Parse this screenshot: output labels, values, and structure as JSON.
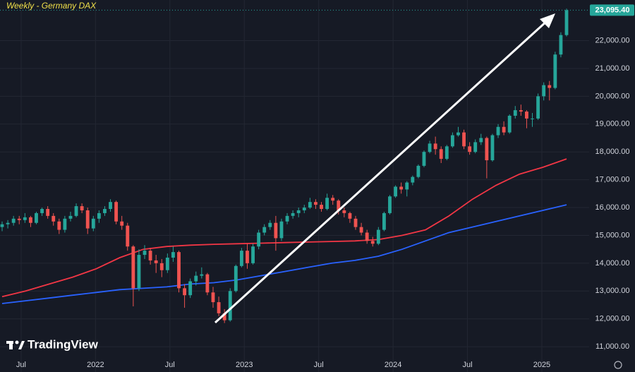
{
  "chart_data": {
    "type": "candlestick",
    "title": "Weekly - Germany DAX",
    "brand": "TradingView",
    "up_color": "#26a69a",
    "down_color": "#ef5350",
    "grid": true,
    "ylim": [
      10090,
      23460
    ],
    "yticks": [
      {
        "value": 11000,
        "label": "11,000.00"
      },
      {
        "value": 12000,
        "label": "12,000.00"
      },
      {
        "value": 13000,
        "label": "13,000.00"
      },
      {
        "value": 14000,
        "label": "14,000.00"
      },
      {
        "value": 15000,
        "label": "15,000.00"
      },
      {
        "value": 16000,
        "label": "16,000.00"
      },
      {
        "value": 17000,
        "label": "17,000.00"
      },
      {
        "value": 18000,
        "label": "18,000.00"
      },
      {
        "value": 19000,
        "label": "19,000.00"
      },
      {
        "value": 20000,
        "label": "20,000.00"
      },
      {
        "value": 21000,
        "label": "21,000.00"
      },
      {
        "value": 22000,
        "label": "22,000.00"
      }
    ],
    "xlim": [
      2021.358,
      2025.318
    ],
    "xticks": [
      {
        "value": 2021.5,
        "label": "Jul"
      },
      2022,
      {
        "value": 2022.5,
        "label": "Jul"
      },
      2023,
      {
        "value": 2023.5,
        "label": "Jul"
      },
      2024,
      {
        "value": 2024.5,
        "label": "Jul"
      },
      2025
    ],
    "last_price": {
      "value": 23095.4,
      "label": "23,095.40"
    },
    "ohlc": [
      [
        15300,
        15500,
        15150,
        15400
      ],
      [
        15400,
        15550,
        15250,
        15450
      ],
      [
        15450,
        15700,
        15350,
        15600
      ],
      [
        15600,
        15700,
        15400,
        15550
      ],
      [
        15550,
        15800,
        15450,
        15650
      ],
      [
        15650,
        15700,
        15300,
        15450
      ],
      [
        15450,
        15850,
        15400,
        15800
      ],
      [
        15800,
        16000,
        15700,
        15950
      ],
      [
        15950,
        16050,
        15600,
        15700
      ],
      [
        15700,
        15800,
        15350,
        15500
      ],
      [
        15500,
        15600,
        15050,
        15200
      ],
      [
        15200,
        15700,
        15100,
        15600
      ],
      [
        15600,
        15850,
        15500,
        15700
      ],
      [
        15700,
        16150,
        15650,
        16050
      ],
      [
        16050,
        16150,
        15800,
        15900
      ],
      [
        15900,
        16000,
        15050,
        15250
      ],
      [
        15250,
        15700,
        15150,
        15600
      ],
      [
        15600,
        15900,
        15450,
        15800
      ],
      [
        15800,
        16050,
        15700,
        15950
      ],
      [
        15950,
        16300,
        15850,
        16200
      ],
      [
        16200,
        16250,
        15400,
        15500
      ],
      [
        15500,
        15700,
        15200,
        15350
      ],
      [
        15350,
        15450,
        14450,
        14600
      ],
      [
        14600,
        14650,
        12450,
        13100
      ],
      [
        13100,
        14500,
        13000,
        14300
      ],
      [
        14300,
        14650,
        14150,
        14450
      ],
      [
        14450,
        14550,
        13950,
        14100
      ],
      [
        14100,
        14300,
        13650,
        14000
      ],
      [
        14000,
        14150,
        13500,
        13750
      ],
      [
        13750,
        14350,
        13650,
        14200
      ],
      [
        14200,
        14600,
        14050,
        14400
      ],
      [
        14400,
        14450,
        12950,
        13100
      ],
      [
        13100,
        13250,
        12400,
        12850
      ],
      [
        12850,
        13450,
        12750,
        13350
      ],
      [
        13350,
        13700,
        13200,
        13550
      ],
      [
        13550,
        13850,
        13450,
        13600
      ],
      [
        13600,
        13650,
        12850,
        12950
      ],
      [
        12950,
        13150,
        12400,
        12600
      ],
      [
        12600,
        12800,
        12100,
        12200
      ],
      [
        12200,
        12350,
        11850,
        11950
      ],
      [
        11950,
        13100,
        11900,
        13000
      ],
      [
        13000,
        13950,
        12950,
        13900
      ],
      [
        13900,
        14550,
        13850,
        14450
      ],
      [
        14450,
        14700,
        13800,
        14000
      ],
      [
        14000,
        14700,
        13950,
        14600
      ],
      [
        14600,
        15200,
        14500,
        15100
      ],
      [
        15100,
        15400,
        15000,
        15300
      ],
      [
        15300,
        15550,
        15200,
        15450
      ],
      [
        15450,
        15700,
        14450,
        14900
      ],
      [
        14900,
        15600,
        14800,
        15500
      ],
      [
        15500,
        15800,
        15400,
        15700
      ],
      [
        15700,
        15900,
        15600,
        15800
      ],
      [
        15800,
        16000,
        15650,
        15900
      ],
      [
        15900,
        16100,
        15800,
        16000
      ],
      [
        16000,
        16350,
        15950,
        16200
      ],
      [
        16200,
        16300,
        15950,
        16100
      ],
      [
        16100,
        16200,
        15850,
        15950
      ],
      [
        15950,
        16500,
        15900,
        16350
      ],
      [
        16350,
        16450,
        16100,
        16250
      ],
      [
        16250,
        16300,
        15750,
        15900
      ],
      [
        15900,
        16000,
        15650,
        15800
      ],
      [
        15800,
        15850,
        15450,
        15600
      ],
      [
        15600,
        15700,
        15200,
        15300
      ],
      [
        15300,
        15450,
        15000,
        15100
      ],
      [
        15100,
        15200,
        14700,
        14800
      ],
      [
        14800,
        14950,
        14600,
        14700
      ],
      [
        14700,
        15300,
        14650,
        15200
      ],
      [
        15200,
        15850,
        15150,
        15800
      ],
      [
        15800,
        16450,
        15750,
        16400
      ],
      [
        16400,
        16800,
        16350,
        16750
      ],
      [
        16750,
        16900,
        16500,
        16650
      ],
      [
        16650,
        16950,
        16400,
        16900
      ],
      [
        16900,
        17150,
        16800,
        17100
      ],
      [
        17100,
        17550,
        17050,
        17500
      ],
      [
        17500,
        18050,
        17450,
        18000
      ],
      [
        18000,
        18400,
        17950,
        18300
      ],
      [
        18300,
        18550,
        17900,
        18100
      ],
      [
        18100,
        18200,
        17600,
        17750
      ],
      [
        17750,
        18250,
        17700,
        18200
      ],
      [
        18200,
        18700,
        18150,
        18600
      ],
      [
        18600,
        18900,
        18550,
        18700
      ],
      [
        18700,
        18800,
        18100,
        18200
      ],
      [
        18200,
        18350,
        17900,
        18000
      ],
      [
        18000,
        18450,
        17950,
        18350
      ],
      [
        18350,
        18650,
        18250,
        18500
      ],
      [
        18500,
        18550,
        17050,
        17700
      ],
      [
        17700,
        18650,
        17650,
        18600
      ],
      [
        18600,
        19000,
        18500,
        18900
      ],
      [
        18900,
        19100,
        18600,
        18700
      ],
      [
        18700,
        19350,
        18650,
        19300
      ],
      [
        19300,
        19650,
        19200,
        19500
      ],
      [
        19500,
        19700,
        19300,
        19450
      ],
      [
        19450,
        19500,
        18850,
        19200
      ],
      [
        19200,
        19400,
        18900,
        19200
      ],
      [
        19200,
        20100,
        19150,
        20000
      ],
      [
        20000,
        20500,
        19850,
        20400
      ],
      [
        20400,
        20550,
        19850,
        20300
      ],
      [
        20300,
        21600,
        20250,
        21500
      ],
      [
        21500,
        22300,
        21400,
        22200
      ],
      [
        22200,
        23150,
        22150,
        23095.4
      ]
    ],
    "series": [
      {
        "color": "#f23645",
        "values": [
          12800,
          13000,
          13250,
          13500,
          13800,
          14200,
          14500,
          14600,
          14650,
          14680,
          14700,
          14720,
          14740,
          14760,
          14780,
          14800,
          14850,
          15000,
          15200,
          15700,
          16300,
          16800,
          17200,
          17450,
          17750
        ]
      },
      {
        "color": "#2962ff",
        "values": [
          12550,
          12650,
          12750,
          12850,
          12950,
          13050,
          13100,
          13150,
          13250,
          13300,
          13400,
          13550,
          13700,
          13850,
          14000,
          14100,
          14250,
          14500,
          14800,
          15100,
          15300,
          15500,
          15700,
          15900,
          16100
        ]
      }
    ]
  }
}
